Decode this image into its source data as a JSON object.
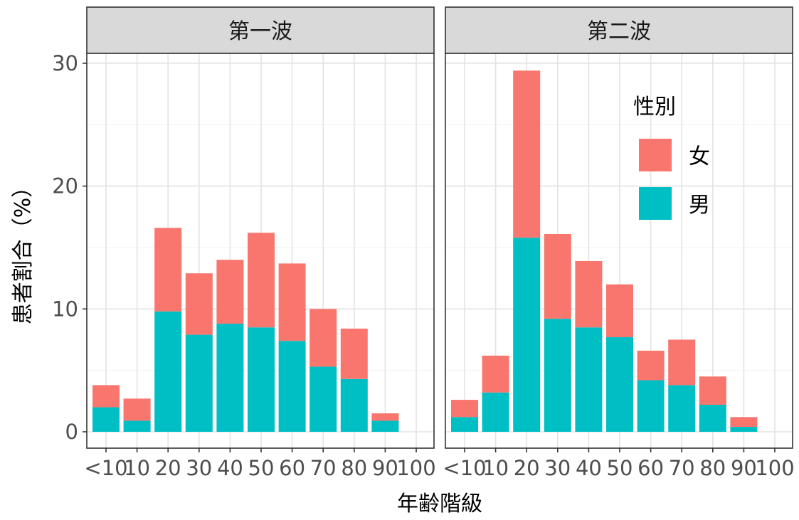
{
  "chart_data": {
    "type": "bar",
    "stacked": true,
    "xlabel": "年齢階級",
    "ylabel": "患者割合（%）",
    "ylim": [
      0,
      32
    ],
    "yticks": [
      0,
      10,
      20,
      30
    ],
    "categories": [
      "<10",
      "10",
      "20",
      "30",
      "40",
      "50",
      "60",
      "70",
      "80",
      "90",
      "100"
    ],
    "grid": true,
    "legend": {
      "title": "性別",
      "position": "inside-top-right of second panel",
      "entries": [
        {
          "label": "女",
          "color": "#F8766D"
        },
        {
          "label": "男",
          "color": "#00BFC4"
        }
      ]
    },
    "panels": [
      {
        "strip": "第一波",
        "series": [
          {
            "key": "male",
            "color": "#00BFC4",
            "values": [
              2.0,
              0.9,
              9.8,
              7.9,
              8.8,
              8.5,
              7.4,
              5.3,
              4.3,
              0.9,
              0
            ]
          },
          {
            "key": "female",
            "color": "#F8766D",
            "values": [
              1.8,
              1.8,
              6.8,
              5.0,
              5.2,
              7.7,
              6.3,
              4.7,
              4.1,
              0.6,
              0
            ]
          }
        ]
      },
      {
        "strip": "第二波",
        "series": [
          {
            "key": "male",
            "color": "#00BFC4",
            "values": [
              1.2,
              3.2,
              15.8,
              9.2,
              8.5,
              7.7,
              4.2,
              3.8,
              2.2,
              0.4,
              0
            ]
          },
          {
            "key": "female",
            "color": "#F8766D",
            "values": [
              1.4,
              3.0,
              13.6,
              6.9,
              5.4,
              4.3,
              2.4,
              3.7,
              2.3,
              0.8,
              0
            ]
          }
        ]
      }
    ]
  }
}
